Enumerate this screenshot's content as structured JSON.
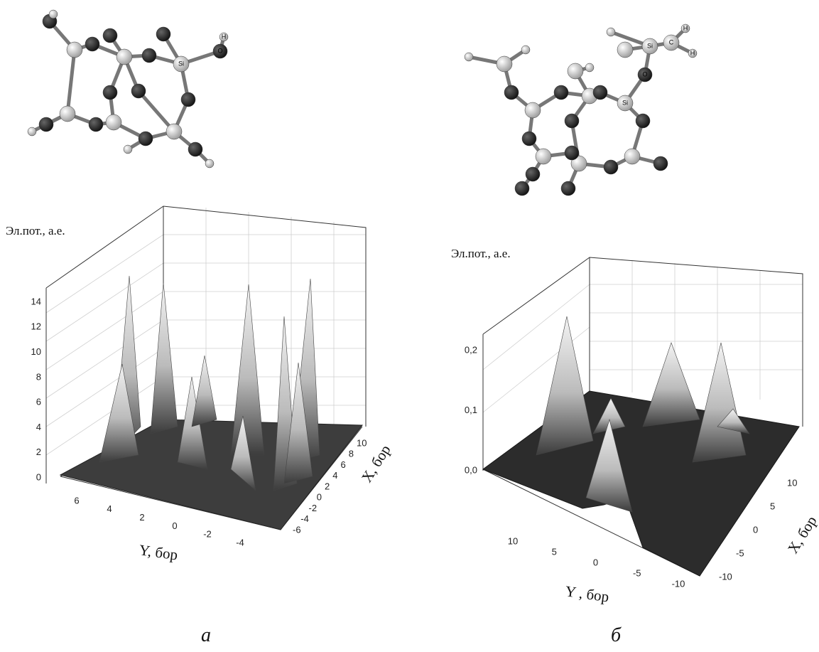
{
  "panels": [
    {
      "label": "а",
      "molecule": {
        "atom_labels": [
          "Si",
          "O",
          "H"
        ]
      },
      "plot": {
        "z_label": "Эл.пот., а.е.",
        "y_label": "Y, бор",
        "x_label": "X, бор",
        "z_ticks": [
          "0",
          "2",
          "4",
          "6",
          "8",
          "10",
          "12",
          "14"
        ],
        "y_ticks": [
          "6",
          "4",
          "2",
          "0",
          "-2",
          "-4"
        ],
        "x_ticks": [
          "-6",
          "-4",
          "-2",
          "0",
          "2",
          "4",
          "6",
          "8",
          "10"
        ]
      }
    },
    {
      "label": "б",
      "molecule": {
        "atom_labels": [
          "Si",
          "C",
          "H",
          "H",
          "O",
          "Si"
        ]
      },
      "plot": {
        "z_label": "Эл.пот., а.е.",
        "y_label": "Y , бор",
        "x_label": "X, бор",
        "z_ticks": [
          "0,0",
          "0,1",
          "0,2"
        ],
        "y_ticks": [
          "10",
          "5",
          "0",
          "-5",
          "-10"
        ],
        "x_ticks": [
          "-10",
          "-5",
          "0",
          "5",
          "10"
        ]
      }
    }
  ]
}
